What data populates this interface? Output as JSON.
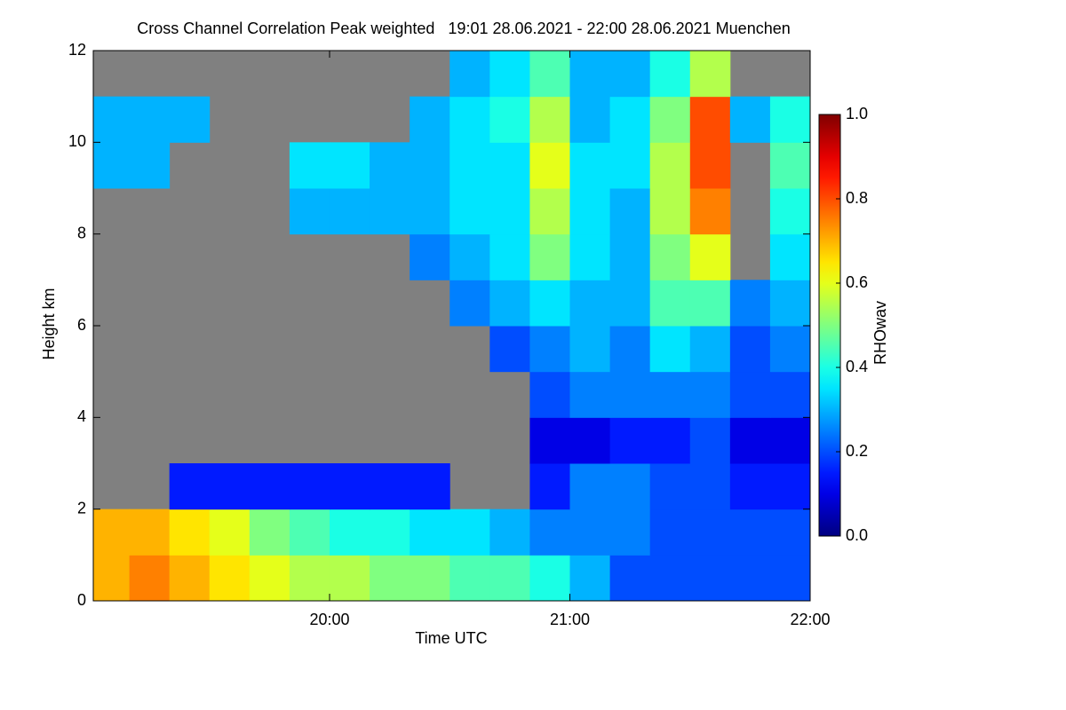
{
  "chart_data": {
    "type": "heatmap",
    "title": "Cross Channel Correlation Peak weighted   19:01 28.06.2021 - 22:00 28.06.2021 Muenchen",
    "x_label": "Time UTC",
    "y_label": "Height km",
    "colorbar_label": "RHOwav",
    "colormap": "jet",
    "missing_color": "#808080",
    "x": [
      1141,
      1150,
      1160,
      1170,
      1180,
      1190,
      1200,
      1210,
      1220,
      1230,
      1240,
      1250,
      1260,
      1270,
      1280,
      1290,
      1300,
      1310,
      1320
    ],
    "y": [
      0,
      1,
      2,
      3,
      4,
      5,
      6,
      7,
      8,
      9,
      10,
      11,
      12
    ],
    "z": [
      [
        0.7,
        0.75,
        0.7,
        0.65,
        0.6,
        0.55,
        0.55,
        0.5,
        0.5,
        0.45,
        0.45,
        0.4,
        0.3,
        0.2,
        0.2,
        0.2,
        0.2,
        0.2
      ],
      [
        0.7,
        0.7,
        0.65,
        0.6,
        0.5,
        0.45,
        0.4,
        0.4,
        0.35,
        0.35,
        0.3,
        0.25,
        0.25,
        0.25,
        0.2,
        0.2,
        0.2,
        0.2
      ],
      [
        null,
        null,
        0.15,
        0.15,
        0.15,
        0.15,
        0.15,
        0.15,
        0.15,
        null,
        null,
        0.15,
        0.25,
        0.25,
        0.2,
        0.2,
        0.15,
        0.15
      ],
      [
        null,
        null,
        null,
        null,
        null,
        null,
        null,
        null,
        null,
        null,
        null,
        0.1,
        0.1,
        0.15,
        0.15,
        0.2,
        0.1,
        0.1
      ],
      [
        null,
        null,
        null,
        null,
        null,
        null,
        null,
        null,
        null,
        null,
        null,
        0.2,
        0.25,
        0.25,
        0.25,
        0.25,
        0.2,
        0.2
      ],
      [
        null,
        null,
        null,
        null,
        null,
        null,
        null,
        null,
        null,
        null,
        0.2,
        0.25,
        0.3,
        0.25,
        0.35,
        0.3,
        0.2,
        0.25
      ],
      [
        null,
        null,
        null,
        null,
        null,
        null,
        null,
        null,
        null,
        0.25,
        0.3,
        0.35,
        0.3,
        0.3,
        0.45,
        0.45,
        0.25,
        0.3
      ],
      [
        null,
        null,
        null,
        null,
        null,
        null,
        null,
        null,
        0.25,
        0.3,
        0.35,
        0.5,
        0.35,
        0.3,
        0.5,
        0.6,
        null,
        0.35
      ],
      [
        null,
        null,
        null,
        null,
        null,
        0.3,
        0.3,
        0.3,
        0.3,
        0.35,
        0.35,
        0.55,
        0.35,
        0.3,
        0.55,
        0.75,
        null,
        0.4
      ],
      [
        0.3,
        0.3,
        null,
        null,
        null,
        0.35,
        0.35,
        0.3,
        0.3,
        0.35,
        0.35,
        0.6,
        0.35,
        0.35,
        0.55,
        0.8,
        null,
        0.45
      ],
      [
        0.3,
        0.3,
        0.3,
        null,
        null,
        null,
        null,
        null,
        0.3,
        0.35,
        0.4,
        0.55,
        0.3,
        0.35,
        0.5,
        0.8,
        0.3,
        0.4
      ],
      [
        null,
        null,
        null,
        null,
        null,
        null,
        null,
        null,
        null,
        0.3,
        0.35,
        0.45,
        0.3,
        0.3,
        0.4,
        0.55,
        null,
        null
      ]
    ],
    "xlim": [
      1141,
      1320
    ],
    "xticks": [
      {
        "value": 1200,
        "label": "20:00"
      },
      {
        "value": 1260,
        "label": "21:00"
      },
      {
        "value": 1320,
        "label": "22:00"
      }
    ],
    "ylim": [
      0,
      12
    ],
    "yticks": [
      0,
      2,
      4,
      6,
      8,
      10,
      12
    ],
    "clim": [
      0,
      1
    ],
    "cticks": [
      {
        "value": 0,
        "label": "0.0"
      },
      {
        "value": 0.2,
        "label": "0.2"
      },
      {
        "value": 0.4,
        "label": "0.4"
      },
      {
        "value": 0.6,
        "label": "0.6"
      },
      {
        "value": 0.8,
        "label": "0.8"
      },
      {
        "value": 1,
        "label": "1.0"
      }
    ]
  }
}
